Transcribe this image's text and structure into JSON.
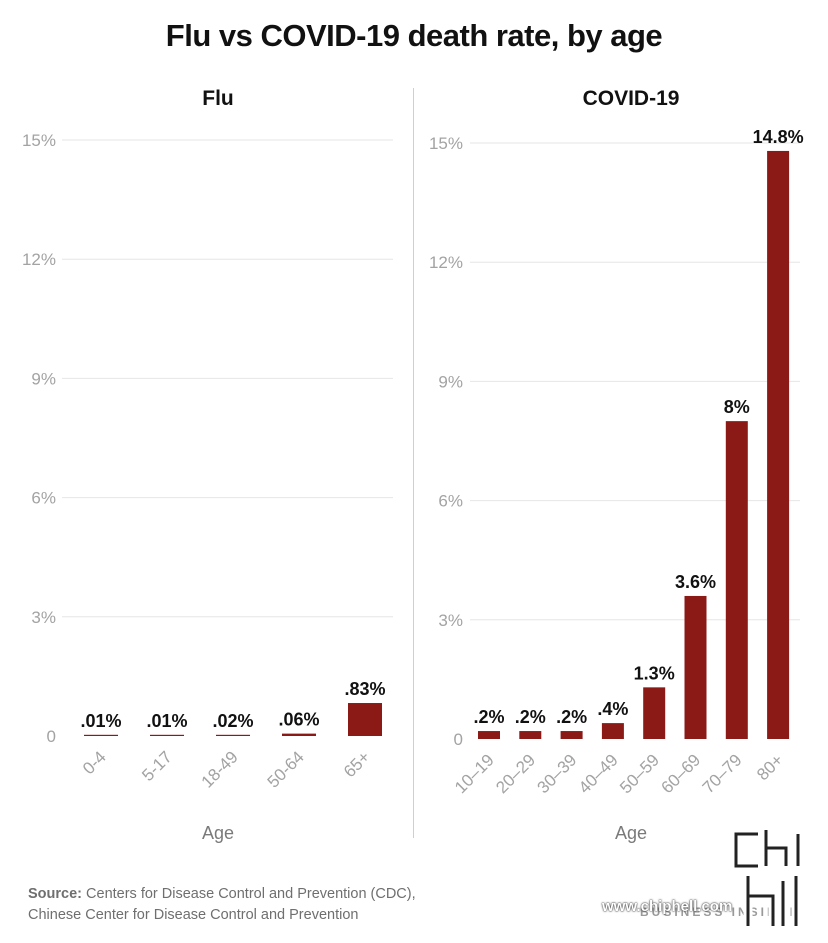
{
  "title": "Flu vs COVID-19 death rate, by age",
  "source": {
    "prefix": "Source:",
    "line1": "Centers for Disease Control and Prevention (CDC),",
    "line2": "Chinese Center for Disease Control and Prevention"
  },
  "brand": "BUSINESS INSIDER",
  "watermark": "www.chiphell.com",
  "colors": {
    "bar": "#8b1a17",
    "grid": "#e6e6e6",
    "tick": "#a3a3a3"
  },
  "chart_data": [
    {
      "type": "bar",
      "title": "Flu",
      "xlabel": "Age",
      "ylabel": "",
      "ylim": [
        0,
        15
      ],
      "yticks": [
        "0",
        "3%",
        "6%",
        "9%",
        "12%",
        "15%"
      ],
      "grid": true,
      "categories": [
        "0-4",
        "5-17",
        "18-49",
        "50-64",
        "65+"
      ],
      "values": [
        0.01,
        0.01,
        0.02,
        0.06,
        0.83
      ],
      "data_labels": [
        ".01%",
        ".01%",
        ".02%",
        ".06%",
        ".83%"
      ]
    },
    {
      "type": "bar",
      "title": "COVID-19",
      "xlabel": "Age",
      "ylabel": "",
      "ylim": [
        0,
        15
      ],
      "yticks": [
        "0",
        "3%",
        "6%",
        "9%",
        "12%",
        "15%"
      ],
      "grid": true,
      "categories": [
        "10–19",
        "20–29",
        "30–39",
        "40–49",
        "50–59",
        "60–69",
        "70–79",
        "80+"
      ],
      "values": [
        0.2,
        0.2,
        0.2,
        0.4,
        1.3,
        3.6,
        8,
        14.8
      ],
      "data_labels": [
        ".2%",
        ".2%",
        ".2%",
        ".4%",
        "1.3%",
        "3.6%",
        "8%",
        "14.8%"
      ]
    }
  ]
}
